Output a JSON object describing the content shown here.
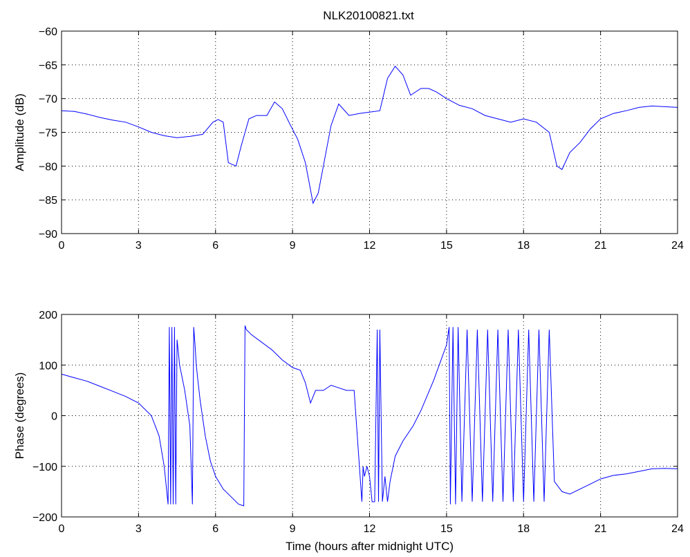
{
  "chart_data": [
    {
      "type": "line",
      "title": "NLK20100821.txt",
      "xlabel": "",
      "ylabel": "Amplitude (dB)",
      "xlim": [
        0,
        24
      ],
      "ylim": [
        -90,
        -60
      ],
      "xticks": [
        0,
        3,
        6,
        9,
        12,
        15,
        18,
        21,
        24
      ],
      "yticks": [
        -90,
        -85,
        -80,
        -75,
        -70,
        -65,
        -60
      ],
      "grid": true,
      "color": "#0000ff",
      "series": [
        {
          "x": [
            0,
            0.5,
            1,
            1.5,
            2,
            2.5,
            3,
            3.5,
            4,
            4.5,
            5,
            5.5,
            5.9,
            6.1,
            6.3,
            6.5,
            6.8,
            7.0,
            7.3,
            7.6,
            8.0,
            8.3,
            8.6,
            8.9,
            9.2,
            9.5,
            9.8,
            10.0,
            10.2,
            10.5,
            10.8,
            11.2,
            11.6,
            12.0,
            12.4,
            12.7,
            13.0,
            13.3,
            13.6,
            14.0,
            14.3,
            14.6,
            15.0,
            15.5,
            16.0,
            16.5,
            17.0,
            17.5,
            18.0,
            18.5,
            19.0,
            19.3,
            19.5,
            19.8,
            20.2,
            20.6,
            21.0,
            21.5,
            22.0,
            22.5,
            23.0,
            23.5,
            24.0
          ],
          "y": [
            -71.8,
            -71.9,
            -72.3,
            -72.8,
            -73.2,
            -73.5,
            -74.2,
            -75.0,
            -75.5,
            -75.8,
            -75.6,
            -75.3,
            -73.5,
            -73.1,
            -73.5,
            -79.5,
            -80.0,
            -77.0,
            -73.0,
            -72.5,
            -72.5,
            -70.5,
            -71.5,
            -73.8,
            -76.0,
            -79.5,
            -85.5,
            -84.0,
            -80.0,
            -74.0,
            -70.8,
            -72.5,
            -72.2,
            -72.0,
            -71.8,
            -67.0,
            -65.2,
            -66.5,
            -69.5,
            -68.5,
            -68.5,
            -69.0,
            -70.0,
            -71.0,
            -71.5,
            -72.5,
            -73.0,
            -73.5,
            -73.0,
            -73.5,
            -75.0,
            -80.0,
            -80.5,
            -78.0,
            -76.5,
            -74.5,
            -73.0,
            -72.2,
            -71.8,
            -71.3,
            -71.1,
            -71.2,
            -71.3
          ]
        }
      ]
    },
    {
      "type": "line",
      "title": "",
      "xlabel": "Time (hours after midnight UTC)",
      "ylabel": "Phase (degrees)",
      "xlim": [
        0,
        24
      ],
      "ylim": [
        -200,
        200
      ],
      "xticks": [
        0,
        3,
        6,
        9,
        12,
        15,
        18,
        21,
        24
      ],
      "yticks": [
        -200,
        -100,
        0,
        100,
        200
      ],
      "grid": true,
      "color": "#0000ff",
      "series": [
        {
          "x": [
            0,
            0.5,
            1,
            1.5,
            2,
            2.5,
            3,
            3.5,
            3.8,
            4.0,
            4.15,
            4.2,
            4.25,
            4.3,
            4.35,
            4.4,
            4.45,
            4.5,
            4.6,
            4.8,
            5.0,
            5.1,
            5.15,
            5.2,
            5.25,
            5.3,
            5.4,
            5.6,
            5.8,
            6.0,
            6.3,
            6.6,
            6.9,
            7.1,
            7.15,
            7.2,
            7.4,
            7.8,
            8.2,
            8.6,
            9.0,
            9.3,
            9.5,
            9.7,
            9.9,
            10.2,
            10.5,
            10.8,
            11.1,
            11.4,
            11.7,
            11.75,
            11.8,
            11.9,
            12.0,
            12.1,
            12.2,
            12.3,
            12.35,
            12.4,
            12.5,
            12.6,
            12.7,
            12.8,
            13.0,
            13.3,
            13.7,
            14.0,
            14.5,
            15.0,
            15.1,
            15.15,
            15.25,
            15.35,
            15.45,
            15.6,
            15.8,
            16.0,
            16.2,
            16.4,
            16.6,
            16.8,
            17.0,
            17.2,
            17.4,
            17.6,
            17.8,
            18.0,
            18.2,
            18.4,
            18.6,
            18.8,
            19.0,
            19.2,
            19.5,
            19.8,
            20.2,
            20.6,
            21.0,
            21.5,
            22.0,
            22.5,
            23.0,
            23.5,
            24.0
          ],
          "y": [
            82,
            75,
            68,
            58,
            48,
            38,
            25,
            0,
            -40,
            -100,
            -175,
            175,
            -175,
            175,
            -175,
            175,
            -175,
            150,
            100,
            50,
            -20,
            -175,
            175,
            140,
            100,
            75,
            30,
            -40,
            -90,
            -120,
            -145,
            -160,
            -175,
            -178,
            178,
            170,
            160,
            145,
            130,
            110,
            95,
            90,
            65,
            25,
            50,
            50,
            60,
            55,
            50,
            50,
            -170,
            -100,
            -120,
            -100,
            -120,
            -170,
            -170,
            170,
            -170,
            170,
            -170,
            -120,
            -170,
            -130,
            -80,
            -50,
            -20,
            10,
            70,
            140,
            175,
            -175,
            175,
            -175,
            175,
            -170,
            170,
            -170,
            170,
            -170,
            170,
            -170,
            170,
            -170,
            170,
            -170,
            170,
            -170,
            170,
            -170,
            170,
            -170,
            170,
            -130,
            -150,
            -155,
            -145,
            -135,
            -125,
            -118,
            -115,
            -110,
            -105,
            -104,
            -105
          ]
        }
      ]
    }
  ]
}
